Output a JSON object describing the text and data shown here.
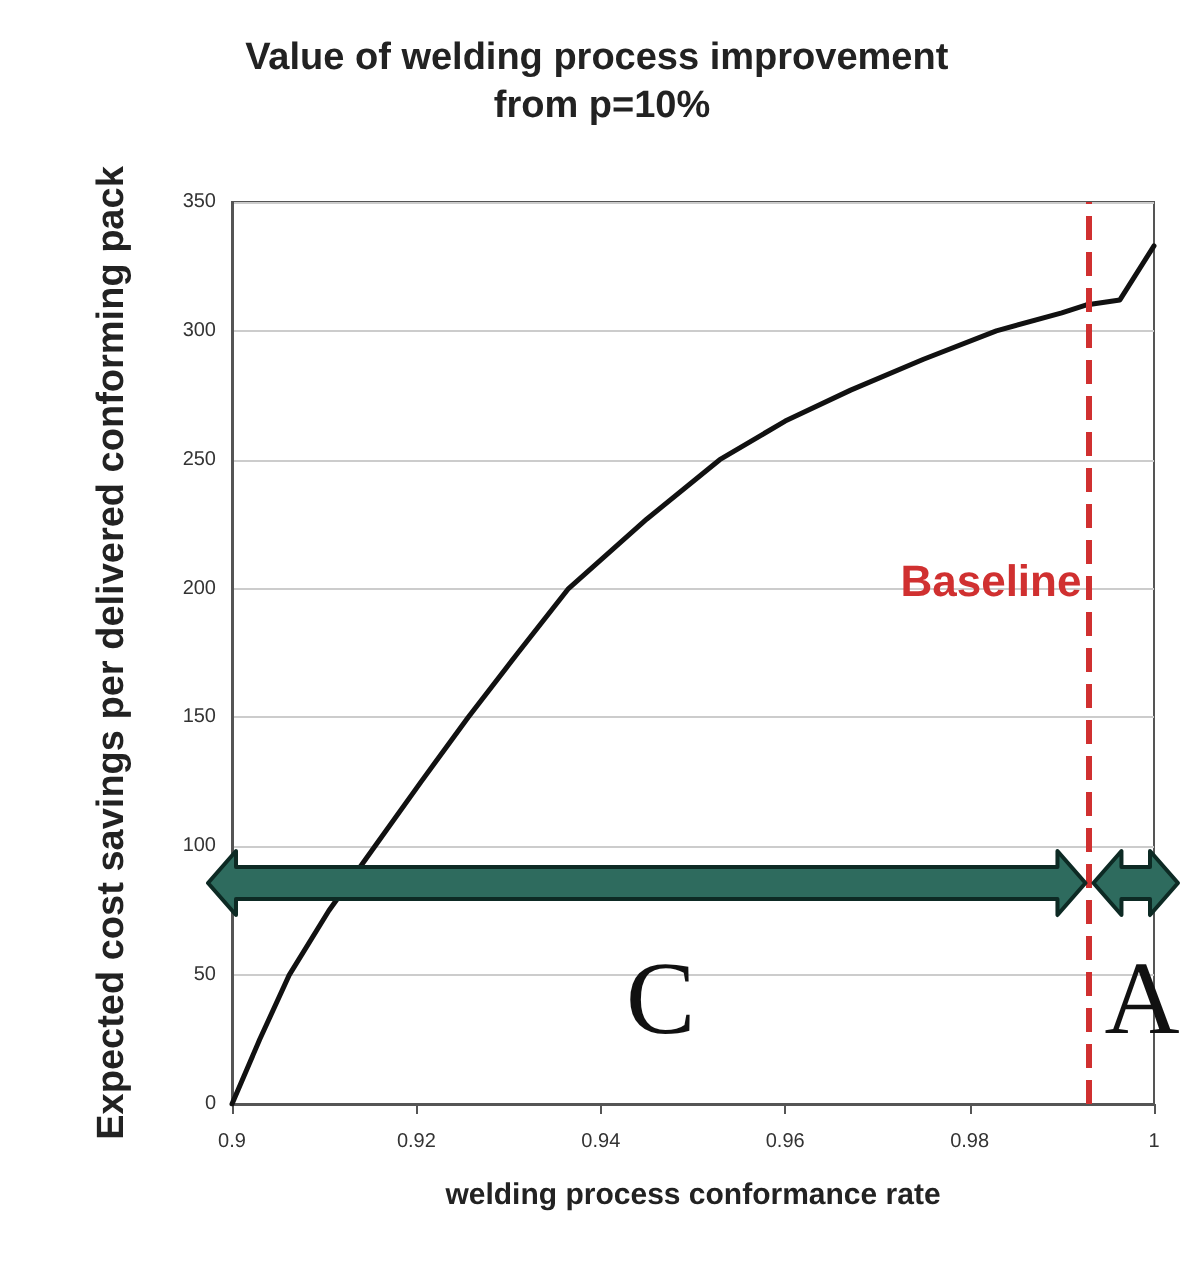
{
  "chart_data": {
    "type": "line",
    "title": "Value of welding process improvement from p=10%",
    "xlabel": "welding process conformance rate",
    "ylabel": "Expected cost savings per delivered conforming pack",
    "x": [
      0.9,
      0.903,
      0.9062,
      0.9105,
      0.9155,
      0.9205,
      0.9256,
      0.931,
      0.9365,
      0.945,
      0.9529,
      0.96,
      0.9671,
      0.975,
      0.9829,
      0.99,
      0.9926,
      0.9963,
      1.0
    ],
    "series": [
      {
        "color": "#111111",
        "values": [
          0,
          25,
          50,
          75,
          100,
          125,
          150,
          175,
          200,
          227,
          250,
          265,
          277,
          289,
          300,
          307,
          310,
          312,
          333
        ]
      }
    ],
    "xlim": [
      0.9,
      1
    ],
    "xticks": [
      0.9,
      0.92,
      0.94,
      0.96,
      0.98,
      1
    ],
    "ylim": [
      0,
      350
    ],
    "yticks": [
      0,
      50,
      100,
      150,
      200,
      250,
      300,
      350
    ],
    "grid": "y",
    "marker": "none",
    "line_style": "solid",
    "ref_lines": [
      {
        "axis": "x",
        "value": 0.993,
        "label": "Baseline",
        "color": "#d03030",
        "line_style": "dashed"
      }
    ],
    "annotations": [
      "C",
      "A"
    ]
  }
}
